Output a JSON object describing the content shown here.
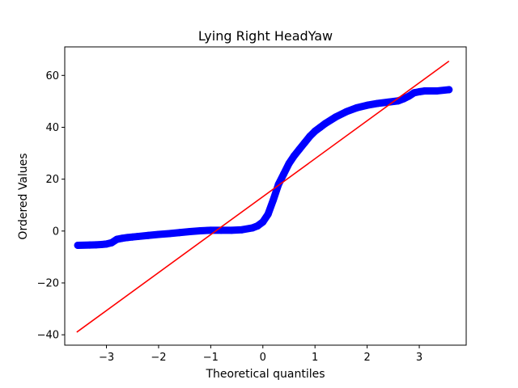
{
  "chart_data": {
    "type": "scatter",
    "title": "Lying Right HeadYaw",
    "xlabel": "Theoretical quantiles",
    "ylabel": "Ordered Values",
    "xlim": [
      -3.8,
      3.9
    ],
    "ylim": [
      -44,
      71
    ],
    "xticks": [
      -3,
      -2,
      -1,
      0,
      1,
      2,
      3
    ],
    "xtick_labels": [
      "−3",
      "−2",
      "−1",
      "0",
      "1",
      "2",
      "3"
    ],
    "yticks": [
      -40,
      -20,
      0,
      20,
      40,
      60
    ],
    "ytick_labels": [
      "−40",
      "−20",
      "0",
      "20",
      "40",
      "60"
    ],
    "grid": false,
    "colors": {
      "points": "#0000ff",
      "fit_line": "#ff0000"
    },
    "series": [
      {
        "kind": "scatter",
        "x": [
          -3.55,
          -3.32,
          -3.2,
          -3.1,
          -3.0,
          -2.9,
          -2.8,
          -2.7,
          -2.6,
          -2.5,
          -2.4,
          -2.2,
          -2.0,
          -1.8,
          -1.6,
          -1.4,
          -1.2,
          -1.0,
          -0.8,
          -0.6,
          -0.4,
          -0.2,
          -0.1,
          0.0,
          0.1,
          0.2,
          0.3,
          0.4,
          0.5,
          0.6,
          0.7,
          0.8,
          0.9,
          1.0,
          1.1,
          1.2,
          1.4,
          1.6,
          1.8,
          2.0,
          2.2,
          2.4,
          2.6,
          2.7,
          2.8,
          2.9,
          3.0,
          3.1,
          3.2,
          3.33,
          3.57
        ],
        "y": [
          -5.5,
          -5.4,
          -5.3,
          -5.2,
          -5.0,
          -4.5,
          -3.2,
          -2.8,
          -2.5,
          -2.3,
          -2.1,
          -1.7,
          -1.3,
          -1.0,
          -0.6,
          -0.2,
          0.1,
          0.3,
          0.3,
          0.3,
          0.5,
          1.2,
          2.0,
          3.5,
          6.5,
          12.0,
          18.0,
          22.0,
          26.0,
          29.0,
          31.5,
          34.0,
          36.5,
          38.5,
          40.0,
          41.5,
          44.0,
          46.0,
          47.5,
          48.5,
          49.2,
          49.7,
          50.2,
          51.0,
          52.0,
          53.3,
          53.7,
          54.0,
          54.0,
          54.0,
          54.5
        ]
      },
      {
        "kind": "line",
        "x": [
          -3.57,
          3.57
        ],
        "y": [
          -39,
          65.5
        ]
      }
    ]
  }
}
